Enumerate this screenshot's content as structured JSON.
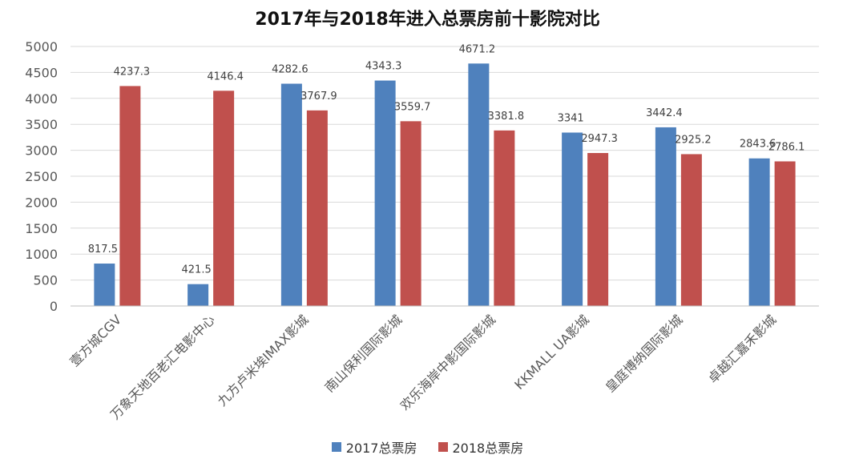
{
  "chart_data": {
    "type": "bar",
    "title": "2017年与2018年进入总票房前十影院对比",
    "categories": [
      "壹方城CGV",
      "万象天地百老汇电影中心",
      "九方卢米埃IMAX影城",
      "南山保利国际影城",
      "欢乐海岸中影国际影城",
      "KKMALL UA影城",
      "皇庭博纳国际影城",
      "卓越汇嘉禾影城"
    ],
    "series": [
      {
        "name": "2017总票房",
        "color": "#4F81BD",
        "values": [
          817.5,
          421.5,
          4282.6,
          4343.3,
          4671.2,
          3341,
          3442.4,
          2843.6
        ],
        "labels": [
          "817.5",
          "421.5",
          "4282.6",
          "4343.3",
          "4671.2",
          "3341",
          "3442.4",
          "2843.6"
        ]
      },
      {
        "name": "2018总票房",
        "color": "#C0504D",
        "values": [
          4237.3,
          4146.4,
          3767.9,
          3559.7,
          3381.8,
          2947.3,
          2925.2,
          2786.1
        ],
        "labels": [
          "4237.3",
          "4146.4",
          "3767.9",
          "3559.7",
          "3381.8",
          "2947.3",
          "2925.2",
          "2786.1"
        ]
      }
    ],
    "ylim": [
      0,
      5000
    ],
    "yticks": [
      "0",
      "500",
      "1000",
      "1500",
      "2000",
      "2500",
      "3000",
      "3500",
      "4000",
      "4500",
      "5000"
    ],
    "xlabel": "",
    "ylabel": "",
    "grid": true,
    "legend_position": "bottom"
  }
}
